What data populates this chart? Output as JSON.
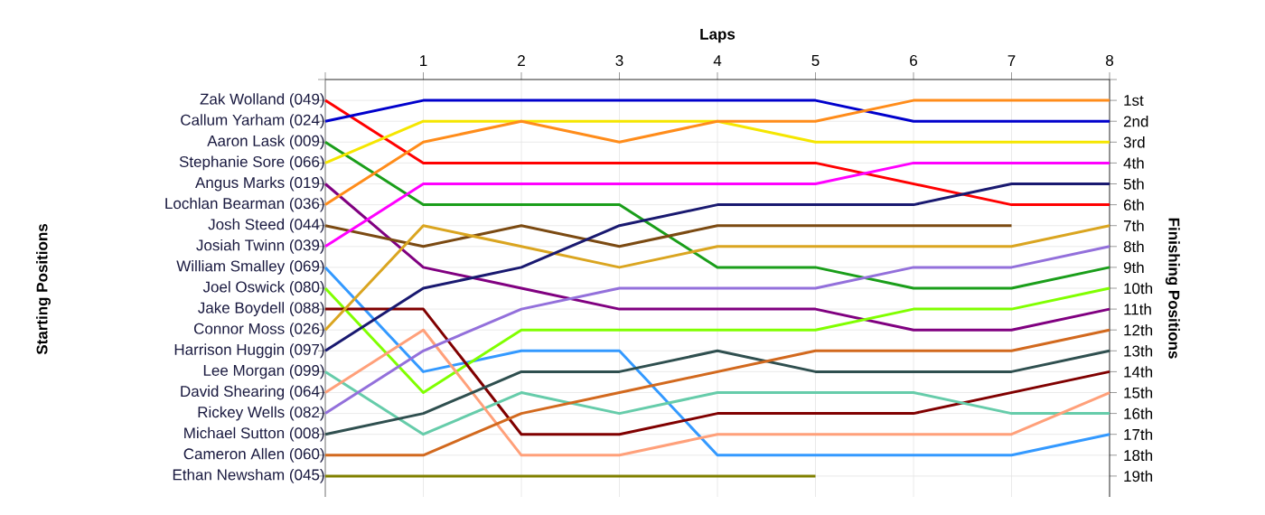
{
  "chart_data": {
    "type": "line",
    "xlabel": "Laps",
    "ylabel": "Finishing Positions",
    "annotations": [
      "Starting Positions"
    ],
    "x": [
      0,
      1,
      2,
      3,
      4,
      5,
      6,
      7,
      8
    ],
    "xlim": [
      0,
      8
    ],
    "xticks": [
      {
        "value": 0,
        "label": null
      },
      1,
      2,
      3,
      4,
      5,
      6,
      7,
      8
    ],
    "ylim": [
      20,
      0
    ],
    "yticks": [
      {
        "value": 0,
        "label": null
      },
      {
        "value": 1,
        "label": "1st"
      },
      {
        "value": 2,
        "label": "2nd"
      },
      {
        "value": 3,
        "label": "3rd"
      },
      {
        "value": 4,
        "label": "4th"
      },
      {
        "value": 5,
        "label": "5th"
      },
      {
        "value": 6,
        "label": "6th"
      },
      {
        "value": 7,
        "label": "7th"
      },
      {
        "value": 8,
        "label": "8th"
      },
      {
        "value": 9,
        "label": "9th"
      },
      {
        "value": 10,
        "label": "10th"
      },
      {
        "value": 11,
        "label": "11th"
      },
      {
        "value": 12,
        "label": "12th"
      },
      {
        "value": 13,
        "label": "13th"
      },
      {
        "value": 14,
        "label": "14th"
      },
      {
        "value": 15,
        "label": "15th"
      },
      {
        "value": 16,
        "label": "16th"
      },
      {
        "value": 17,
        "label": "17th"
      },
      {
        "value": 18,
        "label": "18th"
      },
      {
        "value": 19,
        "label": "19th"
      }
    ],
    "grid": true,
    "series": [
      {
        "name": "Zak Wolland (049)",
        "color": "#ff0000",
        "values": [
          1,
          4,
          4,
          4,
          4,
          4,
          5,
          6,
          6
        ]
      },
      {
        "name": "Callum Yarham (024)",
        "color": "#0000cc",
        "values": [
          2,
          1,
          1,
          1,
          1,
          1,
          2,
          2,
          2
        ]
      },
      {
        "name": "Aaron Lask (009)",
        "color": "#1a9e1a",
        "values": [
          3,
          6,
          6,
          6,
          9,
          9,
          10,
          10,
          9
        ]
      },
      {
        "name": "Stephanie Sore (066)",
        "color": "#f5e600",
        "values": [
          4,
          2,
          2,
          2,
          2,
          3,
          3,
          3,
          3
        ]
      },
      {
        "name": "Angus Marks (019)",
        "color": "#800080",
        "values": [
          5,
          9,
          10,
          11,
          11,
          11,
          12,
          12,
          11
        ]
      },
      {
        "name": "Lochlan Bearman (036)",
        "color": "#ff8c1a",
        "values": [
          6,
          3,
          2,
          3,
          2,
          2,
          1,
          1,
          1
        ]
      },
      {
        "name": "Josh Steed (044)",
        "color": "#7b4a12",
        "values": [
          7,
          8,
          7,
          8,
          7,
          7,
          7,
          7,
          null
        ]
      },
      {
        "name": "Josiah Twinn (039)",
        "color": "#ff00ff",
        "values": [
          8,
          5,
          5,
          5,
          5,
          5,
          4,
          4,
          4
        ]
      },
      {
        "name": "William Smalley (069)",
        "color": "#3399ff",
        "values": [
          9,
          14,
          13,
          13,
          18,
          18,
          18,
          18,
          17
        ]
      },
      {
        "name": "Joel Oswick (080)",
        "color": "#80ff00",
        "values": [
          10,
          15,
          12,
          12,
          12,
          12,
          11,
          11,
          10
        ]
      },
      {
        "name": "Jake Boydell (088)",
        "color": "#800000",
        "values": [
          11,
          11,
          17,
          17,
          16,
          16,
          16,
          15,
          14
        ]
      },
      {
        "name": "Connor Moss (026)",
        "color": "#daa520",
        "values": [
          12,
          7,
          8,
          9,
          8,
          8,
          8,
          8,
          7
        ]
      },
      {
        "name": "Harrison Huggin (097)",
        "color": "#191970",
        "values": [
          13,
          10,
          9,
          7,
          6,
          6,
          6,
          5,
          5
        ]
      },
      {
        "name": "Lee Morgan (099)",
        "color": "#66ccaa",
        "values": [
          14,
          17,
          15,
          16,
          15,
          15,
          15,
          16,
          16
        ]
      },
      {
        "name": "David Shearing (064)",
        "color": "#ffa07a",
        "values": [
          15,
          12,
          18,
          18,
          17,
          17,
          17,
          17,
          15
        ]
      },
      {
        "name": "Rickey Wells (082)",
        "color": "#9370db",
        "values": [
          16,
          13,
          11,
          10,
          10,
          10,
          9,
          9,
          8
        ]
      },
      {
        "name": "Michael Sutton (008)",
        "color": "#2f4f4f",
        "values": [
          17,
          16,
          14,
          14,
          13,
          14,
          14,
          14,
          13
        ]
      },
      {
        "name": "Cameron Allen (060)",
        "color": "#d2691e",
        "values": [
          18,
          18,
          16,
          15,
          14,
          13,
          13,
          13,
          12
        ]
      },
      {
        "name": "Ethan Newsham (045)",
        "color": "#808000",
        "values": [
          19,
          19,
          19,
          19,
          19,
          19,
          null,
          null,
          null
        ]
      }
    ]
  }
}
